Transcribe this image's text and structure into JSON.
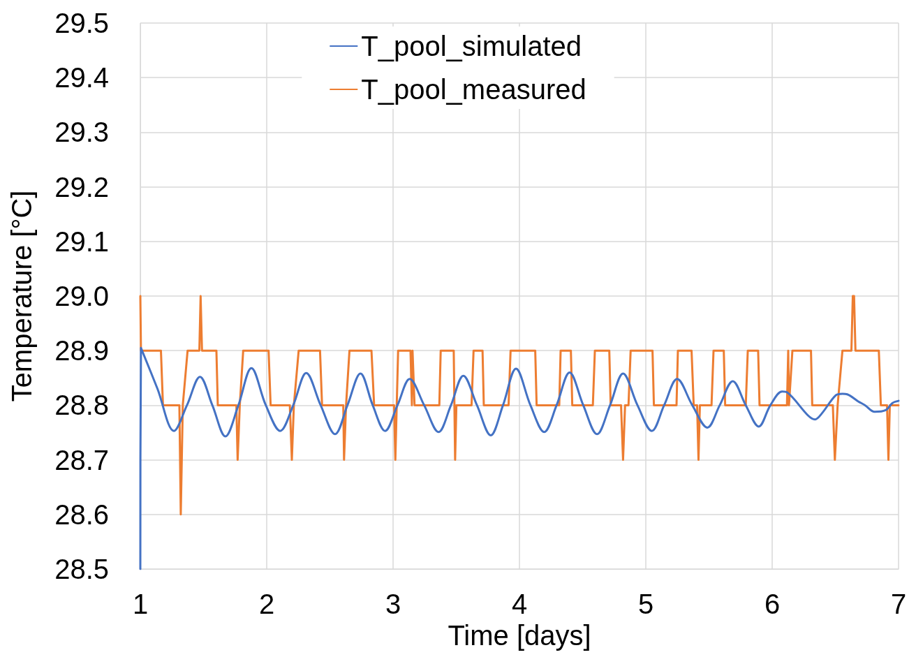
{
  "chart_data": {
    "type": "line",
    "xlabel": "Time [days]",
    "ylabel": "Temperature [°C]",
    "xlim": [
      1,
      7
    ],
    "xticks": [
      1,
      2,
      3,
      4,
      5,
      6,
      7
    ],
    "ylim": [
      28.5,
      29.5
    ],
    "yticks": [
      28.5,
      28.6,
      28.7,
      28.8,
      28.9,
      {
        "value": 29,
        "label": "29.0"
      },
      29.1,
      29.2,
      29.3,
      29.4,
      29.5
    ],
    "grid": true,
    "legend": "top",
    "marker": "none",
    "line_style": "solid",
    "series": [
      {
        "name": "T_pool_simulated",
        "color": "#4472c4",
        "x": [
          1.0,
          1.005,
          1.136,
          1.266,
          1.369,
          1.472,
          1.57,
          1.673,
          1.776,
          1.879,
          1.993,
          2.107,
          2.21,
          2.313,
          2.427,
          2.541,
          2.639,
          2.742,
          2.839,
          2.937,
          3.035,
          3.132,
          3.246,
          3.36,
          3.458,
          3.556,
          3.664,
          3.773,
          3.87,
          3.973,
          4.087,
          4.196,
          4.294,
          4.397,
          4.505,
          4.614,
          4.717,
          4.82,
          4.934,
          5.048,
          5.145,
          5.248,
          5.368,
          5.487,
          5.585,
          5.688,
          5.791,
          5.894,
          5.986,
          6.079,
          6.122,
          6.285,
          6.339,
          6.393,
          6.502,
          6.556,
          6.594,
          6.681,
          6.735,
          6.811,
          6.898,
          6.952,
          7.0
        ],
        "values": [
          28.5,
          28.905,
          28.83,
          28.753,
          28.8,
          28.852,
          28.8,
          28.743,
          28.8,
          28.868,
          28.8,
          28.753,
          28.8,
          28.859,
          28.8,
          28.747,
          28.8,
          28.858,
          28.8,
          28.753,
          28.8,
          28.848,
          28.8,
          28.751,
          28.8,
          28.854,
          28.8,
          28.745,
          28.8,
          28.867,
          28.8,
          28.751,
          28.8,
          28.86,
          28.8,
          28.747,
          28.8,
          28.858,
          28.8,
          28.753,
          28.8,
          28.848,
          28.8,
          28.759,
          28.8,
          28.844,
          28.8,
          28.761,
          28.8,
          28.825,
          28.823,
          28.781,
          28.774,
          28.785,
          28.818,
          28.821,
          28.82,
          28.807,
          28.8,
          28.788,
          28.791,
          28.804,
          28.808
        ]
      },
      {
        "name": "T_pool_measured",
        "color": "#ed7d31",
        "x": [
          1.0,
          1.005,
          1.163,
          1.179,
          1.309,
          1.32,
          1.336,
          1.374,
          1.467,
          1.477,
          1.488,
          1.602,
          1.613,
          1.76,
          1.77,
          1.787,
          1.814,
          2.015,
          2.031,
          2.183,
          2.199,
          2.215,
          2.253,
          2.422,
          2.438,
          2.606,
          2.612,
          2.628,
          2.655,
          2.829,
          2.85,
          3.008,
          3.018,
          3.04,
          3.138,
          3.149,
          3.154,
          3.17,
          3.366,
          3.377,
          3.48,
          3.491,
          3.501,
          3.621,
          3.637,
          3.708,
          3.718,
          3.914,
          3.93,
          4.125,
          4.136,
          4.315,
          4.326,
          4.407,
          4.418,
          4.581,
          4.597,
          4.711,
          4.722,
          4.804,
          4.82,
          4.836,
          4.863,
          4.88,
          5.053,
          5.064,
          5.243,
          5.254,
          5.362,
          5.379,
          5.406,
          5.417,
          5.428,
          5.52,
          5.536,
          5.617,
          5.628,
          5.791,
          5.807,
          5.889,
          5.9,
          6.117,
          6.127,
          6.133,
          6.16,
          6.307,
          6.317,
          6.48,
          6.496,
          6.518,
          6.556,
          6.627,
          6.638,
          6.648,
          6.659,
          6.844,
          6.86,
          6.909,
          6.92,
          6.931,
          7.0
        ],
        "values": [
          29.0,
          28.9,
          28.9,
          28.8,
          28.8,
          28.6,
          28.8,
          28.9,
          28.9,
          29.0,
          28.9,
          28.9,
          28.8,
          28.8,
          28.7,
          28.8,
          28.9,
          28.9,
          28.8,
          28.8,
          28.7,
          28.8,
          28.9,
          28.9,
          28.8,
          28.8,
          28.7,
          28.8,
          28.9,
          28.9,
          28.8,
          28.8,
          28.7,
          28.9,
          28.9,
          28.8,
          28.9,
          28.8,
          28.8,
          28.9,
          28.9,
          28.7,
          28.8,
          28.8,
          28.9,
          28.9,
          28.8,
          28.8,
          28.9,
          28.9,
          28.8,
          28.8,
          28.9,
          28.9,
          28.8,
          28.8,
          28.9,
          28.9,
          28.8,
          28.8,
          28.7,
          28.8,
          28.8,
          28.9,
          28.9,
          28.8,
          28.8,
          28.9,
          28.9,
          28.8,
          28.8,
          28.7,
          28.8,
          28.8,
          28.9,
          28.9,
          28.8,
          28.8,
          28.9,
          28.9,
          28.8,
          28.8,
          28.9,
          28.8,
          28.9,
          28.9,
          28.8,
          28.8,
          28.7,
          28.8,
          28.9,
          28.9,
          29.0,
          29.0,
          28.9,
          28.9,
          28.8,
          28.8,
          28.7,
          28.8,
          28.8
        ]
      }
    ]
  }
}
